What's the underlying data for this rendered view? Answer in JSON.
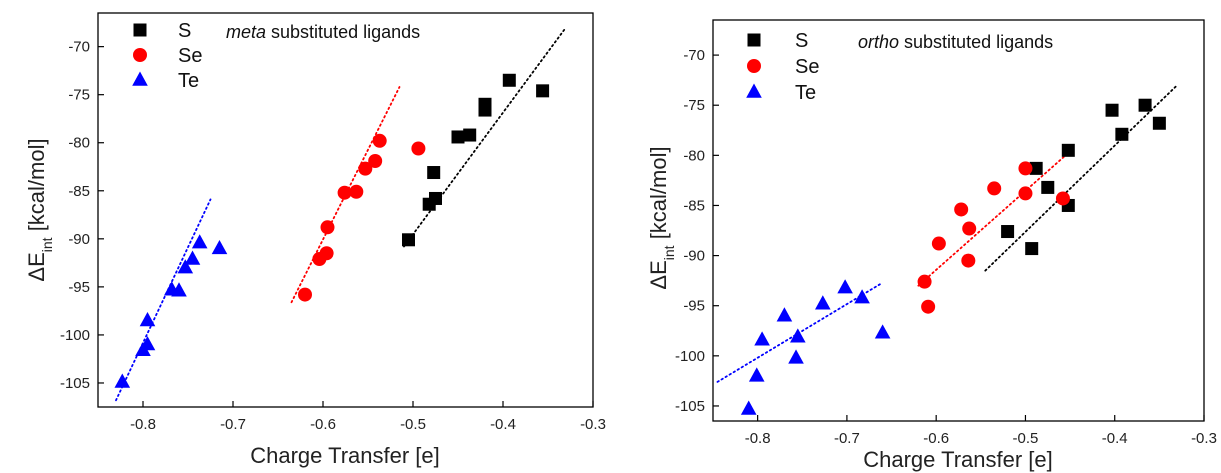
{
  "chart_data": [
    {
      "type": "scatter",
      "title_italic": "meta",
      "title_rest": " substituted ligands",
      "xlabel": "Charge Transfer [e]",
      "ylabel_prefix": "ΔE",
      "ylabel_sub": "int",
      "ylabel_suffix": " [kcal/mol]",
      "xlim": [
        -0.85,
        -0.3
      ],
      "ylim": [
        -107.5,
        -66.5
      ],
      "xticks": [
        -0.8,
        -0.7,
        -0.6,
        -0.5,
        -0.4,
        -0.3
      ],
      "xtick_labels": [
        "-0.8",
        "-0.7",
        "-0.6",
        "-0.5",
        "-0.4",
        "-0.3"
      ],
      "yticks": [
        -105,
        -100,
        -95,
        -90,
        -85,
        -80,
        -75,
        -70
      ],
      "ytick_labels": [
        "-105",
        "-100",
        "-95",
        "-90",
        "-85",
        "-80",
        "-75",
        "-70"
      ],
      "legend_position": "top-left",
      "series": [
        {
          "name": "S",
          "marker": "square",
          "color": "#000000",
          "points": [
            [
              -0.505,
              -90.1
            ],
            [
              -0.482,
              -86.4
            ],
            [
              -0.475,
              -85.8
            ],
            [
              -0.477,
              -83.1
            ],
            [
              -0.45,
              -79.4
            ],
            [
              -0.437,
              -79.2
            ],
            [
              -0.42,
              -76.6
            ],
            [
              -0.42,
              -76.0
            ],
            [
              -0.393,
              -73.5
            ],
            [
              -0.356,
              -74.6
            ]
          ],
          "fit": [
            [
              -0.51,
              -90.8
            ],
            [
              -0.33,
              -68.0
            ]
          ]
        },
        {
          "name": "Se",
          "marker": "circle",
          "color": "#ff0000",
          "points": [
            [
              -0.62,
              -95.8
            ],
            [
              -0.604,
              -92.1
            ],
            [
              -0.596,
              -91.5
            ],
            [
              -0.595,
              -88.8
            ],
            [
              -0.576,
              -85.2
            ],
            [
              -0.563,
              -85.1
            ],
            [
              -0.553,
              -82.7
            ],
            [
              -0.542,
              -81.9
            ],
            [
              -0.537,
              -79.8
            ],
            [
              -0.494,
              -80.6
            ]
          ],
          "fit": [
            [
              -0.635,
              -96.6
            ],
            [
              -0.515,
              -74.2
            ]
          ]
        },
        {
          "name": "Te",
          "marker": "triangle",
          "color": "#0000ff",
          "points": [
            [
              -0.823,
              -104.9
            ],
            [
              -0.8,
              -101.6
            ],
            [
              -0.795,
              -101.0
            ],
            [
              -0.795,
              -98.5
            ],
            [
              -0.768,
              -95.3
            ],
            [
              -0.76,
              -95.4
            ],
            [
              -0.753,
              -93.0
            ],
            [
              -0.745,
              -92.1
            ],
            [
              -0.737,
              -90.4
            ],
            [
              -0.715,
              -91.0
            ]
          ],
          "fit": [
            [
              -0.83,
              -106.8
            ],
            [
              -0.725,
              -85.9
            ]
          ]
        }
      ]
    },
    {
      "type": "scatter",
      "title_italic": "ortho",
      "title_rest": " substituted ligands",
      "xlabel": "Charge Transfer [e]",
      "ylabel_prefix": "ΔE",
      "ylabel_sub": "int",
      "ylabel_suffix": " [kcal/mol]",
      "xlim": [
        -0.85,
        -0.3
      ],
      "ylim": [
        -106.5,
        -66.5
      ],
      "xticks": [
        -0.8,
        -0.7,
        -0.6,
        -0.5,
        -0.4,
        -0.3
      ],
      "xtick_labels": [
        "-0.8",
        "-0.7",
        "-0.6",
        "-0.5",
        "-0.4",
        "-0.3"
      ],
      "yticks": [
        -105,
        -100,
        -95,
        -90,
        -85,
        -80,
        -75,
        -70
      ],
      "ytick_labels": [
        "-105",
        "-100",
        "-95",
        "-90",
        "-85",
        "-80",
        "-75",
        "-70"
      ],
      "legend_position": "top-left",
      "series": [
        {
          "name": "S",
          "marker": "square",
          "color": "#000000",
          "points": [
            [
              -0.52,
              -87.6
            ],
            [
              -0.493,
              -89.3
            ],
            [
              -0.488,
              -81.3
            ],
            [
              -0.475,
              -83.2
            ],
            [
              -0.452,
              -85.0
            ],
            [
              -0.452,
              -79.5
            ],
            [
              -0.403,
              -75.5
            ],
            [
              -0.392,
              -77.9
            ],
            [
              -0.366,
              -75.0
            ],
            [
              -0.35,
              -76.8
            ]
          ],
          "fit": [
            [
              -0.545,
              -91.5
            ],
            [
              -0.33,
              -73.0
            ]
          ]
        },
        {
          "name": "Se",
          "marker": "circle",
          "color": "#ff0000",
          "points": [
            [
              -0.613,
              -92.6
            ],
            [
              -0.609,
              -95.1
            ],
            [
              -0.597,
              -88.8
            ],
            [
              -0.572,
              -85.4
            ],
            [
              -0.563,
              -87.3
            ],
            [
              -0.564,
              -90.5
            ],
            [
              -0.535,
              -83.3
            ],
            [
              -0.5,
              -81.3
            ],
            [
              -0.5,
              -83.8
            ],
            [
              -0.458,
              -84.3
            ]
          ],
          "fit": [
            [
              -0.62,
              -93.0
            ],
            [
              -0.45,
              -79.6
            ]
          ]
        },
        {
          "name": "Te",
          "marker": "triangle",
          "color": "#0000ff",
          "points": [
            [
              -0.81,
              -105.3
            ],
            [
              -0.801,
              -102.0
            ],
            [
              -0.795,
              -98.4
            ],
            [
              -0.77,
              -96.0
            ],
            [
              -0.757,
              -100.2
            ],
            [
              -0.755,
              -98.1
            ],
            [
              -0.727,
              -94.8
            ],
            [
              -0.702,
              -93.2
            ],
            [
              -0.683,
              -94.2
            ],
            [
              -0.66,
              -97.7
            ]
          ],
          "fit": [
            [
              -0.845,
              -102.6
            ],
            [
              -0.66,
              -92.7
            ]
          ]
        }
      ]
    }
  ]
}
